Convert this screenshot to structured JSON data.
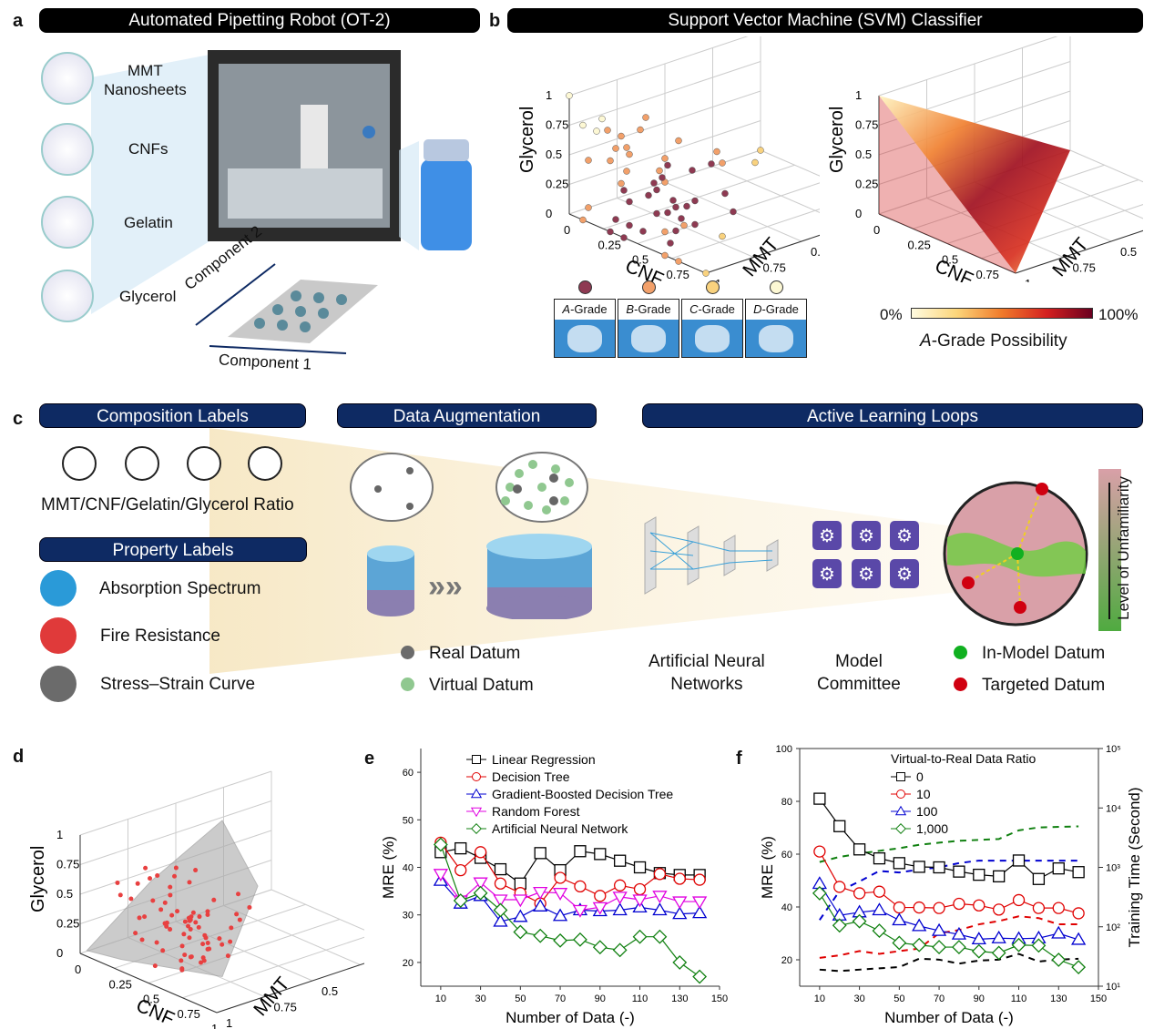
{
  "panel_a": {
    "label": "a",
    "title": "Automated Pipetting Robot (OT-2)",
    "materials": [
      "MMT\nNanosheets",
      "CNFs",
      "Gelatin",
      "Glycerol"
    ],
    "axis1": "Component 1",
    "axis2": "Component 2"
  },
  "panel_b": {
    "label": "b",
    "title": "Support Vector Machine (SVM) Classifier",
    "axes": {
      "z": "Glycerol",
      "x": "CNF",
      "y": "MMT",
      "ticks": [
        "0",
        "0.25",
        "0.5",
        "0.75",
        "1"
      ]
    },
    "grades": [
      {
        "label": "A-Grade",
        "letter": "A",
        "rest": "-Grade",
        "color": "#8e3a52"
      },
      {
        "label": "B-Grade",
        "letter": "B",
        "rest": "-Grade",
        "color": "#f2a06a"
      },
      {
        "label": "C-Grade",
        "letter": "C",
        "rest": "-Grade",
        "color": "#f9d27e"
      },
      {
        "label": "D-Grade",
        "letter": "D",
        "rest": "-Grade",
        "color": "#fdf8d4"
      }
    ],
    "colorbar": {
      "min": "0%",
      "max": "100%",
      "title_italic": "A",
      "title_rest": "-Grade Possibility",
      "colors": [
        "#fffbe0",
        "#fcd57a",
        "#f07a2a",
        "#d42020",
        "#6a0020"
      ]
    }
  },
  "panel_c": {
    "label": "c",
    "composition_title": "Composition Labels",
    "composition_text": "MMT/CNF/Gelatin/Glycerol Ratio",
    "property_title": "Property Labels",
    "properties": [
      {
        "label": "Absorption Spectrum",
        "icon": "eye-icon",
        "color": "#2a9ad8"
      },
      {
        "label": "Fire Resistance",
        "icon": "thermometer-icon",
        "color": "#e03a3a"
      },
      {
        "label": "Stress–Strain Curve",
        "icon": "gear-icon",
        "color": "#6b6b6b"
      }
    ],
    "augmentation_title": "Data Augmentation",
    "real_datum": "Real Datum",
    "virtual_datum": "Virtual Datum",
    "real_color": "#6b6b6b",
    "virtual_color": "#90c890",
    "active_title": "Active Learning Loops",
    "ann_label": "Artificial Neural\nNetworks",
    "committee_label": "Model\nCommittee",
    "in_model": "In-Model Datum",
    "targeted": "Targeted Datum",
    "in_model_color": "#10b020",
    "targeted_color": "#d00010",
    "unfamiliarity": "Level of Unfamiliarity"
  },
  "panel_d": {
    "label": "d",
    "axes": {
      "z": "Glycerol",
      "x": "CNF",
      "y": "MMT",
      "ticks": [
        "0",
        "0.25",
        "0.5",
        "0.75",
        "1"
      ]
    }
  },
  "chart_data": [
    {
      "panel": "e",
      "type": "line",
      "xlabel": "Number of Data (-)",
      "ylabel": "MRE (%)",
      "xlim": [
        0,
        150
      ],
      "ylim": [
        15,
        65
      ],
      "xticks": [
        10,
        30,
        50,
        70,
        90,
        110,
        130,
        150
      ],
      "yticks": [
        20,
        30,
        40,
        50,
        60
      ],
      "legend": "top-right",
      "x": [
        10,
        20,
        30,
        40,
        50,
        60,
        70,
        80,
        90,
        100,
        110,
        120,
        130,
        140
      ],
      "series": [
        {
          "name": "Linear Regression",
          "color": "#000000",
          "marker": "square",
          "values": [
            43.2,
            44,
            42,
            39.6,
            36.6,
            43,
            39.4,
            43.4,
            42.8,
            41.4,
            40,
            38.8,
            38.4,
            38.4
          ]
        },
        {
          "name": "Decision Tree",
          "color": "#e00000",
          "marker": "circle",
          "values": [
            45.2,
            39.4,
            43.2,
            36.6,
            34.6,
            32.4,
            37.8,
            36,
            34,
            36.2,
            35.4,
            38.6,
            37.6,
            37.4
          ]
        },
        {
          "name": "Gradient-Boosted Decision Tree",
          "color": "#0000d0",
          "marker": "triangle-up",
          "values": [
            37.2,
            32.4,
            34,
            28.6,
            29.6,
            31.8,
            29.8,
            31,
            30.8,
            31,
            31.6,
            31,
            30.2,
            30.4
          ]
        },
        {
          "name": "Random Forest",
          "color": "#e000e0",
          "marker": "triangle-down",
          "values": [
            38.6,
            33,
            36.8,
            33.2,
            33.2,
            34.8,
            34.6,
            31,
            31.6,
            33.8,
            33.2,
            34,
            32.8,
            32.8
          ]
        },
        {
          "name": "Artificial Neural Network",
          "color": "#108010",
          "marker": "diamond",
          "values": [
            44.8,
            33,
            34.6,
            31,
            26.4,
            25.6,
            24.6,
            24.8,
            23.2,
            22.6,
            25.4,
            25.4,
            20,
            17
          ]
        }
      ]
    },
    {
      "panel": "f",
      "type": "line",
      "xlabel": "Number of Data (-)",
      "ylabel": "MRE (%)",
      "y2label": "Training Time (Second)",
      "xlim": [
        0,
        150
      ],
      "ylim": [
        10,
        100
      ],
      "y2lim": [
        10,
        100000
      ],
      "y2scale": "log",
      "xticks": [
        10,
        30,
        50,
        70,
        90,
        110,
        130,
        150
      ],
      "yticks": [
        20,
        40,
        60,
        80,
        100
      ],
      "y2ticks": [
        "10¹",
        "10²",
        "10³",
        "10⁴",
        "10⁵"
      ],
      "legend_title": "Virtual-to-Real Data Ratio",
      "legend": "top-right",
      "x": [
        10,
        20,
        30,
        40,
        50,
        60,
        70,
        80,
        90,
        100,
        110,
        120,
        130,
        140
      ],
      "series": [
        {
          "name": "0",
          "color": "#000000",
          "marker": "square",
          "values": [
            81,
            70.6,
            61.8,
            58.4,
            56.6,
            55.2,
            55,
            53.4,
            52.2,
            51.6,
            57.6,
            50.6,
            54.6,
            53.2
          ],
          "time": [
            19,
            18,
            19,
            20,
            21,
            29,
            28,
            24,
            27,
            28,
            35,
            26,
            28,
            29
          ]
        },
        {
          "name": "10",
          "color": "#e00000",
          "marker": "circle",
          "values": [
            61,
            47.6,
            45.2,
            45.8,
            39.8,
            39.8,
            39.6,
            41.2,
            40.6,
            39,
            42.6,
            39.6,
            39.6,
            37.6
          ],
          "time": [
            30,
            33,
            39,
            35,
            39,
            43,
            78,
            88,
            110,
            125,
            150,
            140,
            110,
            110
          ]
        },
        {
          "name": "100",
          "color": "#0000d0",
          "marker": "triangle-up",
          "values": [
            48.8,
            36.8,
            38,
            38.8,
            35,
            32.8,
            31,
            29.6,
            27.8,
            28.2,
            28,
            28.2,
            30,
            27.6
          ],
          "time": [
            130,
            400,
            580,
            870,
            820,
            920,
            1000,
            1180,
            1300,
            1300,
            1300,
            1300,
            1300,
            1300
          ]
        },
        {
          "name": "1,000",
          "color": "#108010",
          "marker": "diamond",
          "values": [
            45.2,
            33,
            34.6,
            31,
            26.4,
            25.6,
            24.8,
            24.8,
            23.2,
            22.6,
            25.6,
            25.4,
            20,
            17.2
          ],
          "time": [
            1230,
            1500,
            1700,
            1900,
            2100,
            2400,
            2600,
            2800,
            2900,
            3000,
            4200,
            4700,
            4800,
            4900
          ]
        }
      ]
    }
  ]
}
